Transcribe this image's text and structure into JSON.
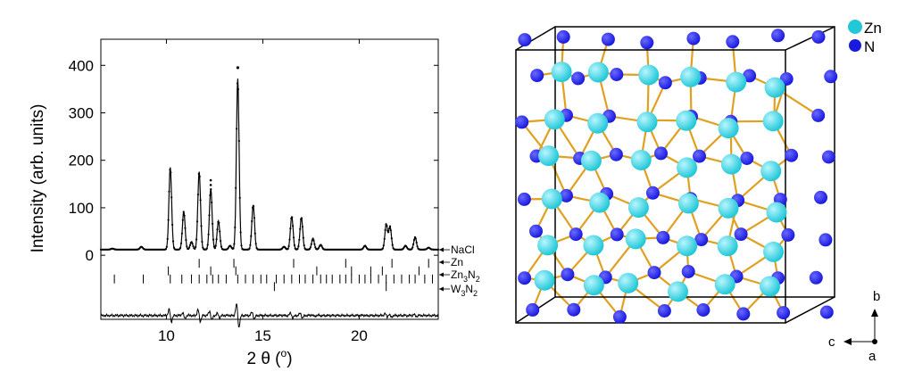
{
  "chart_data": {
    "type": "line",
    "xlabel": "2 θ (",
    "xlabel_sup": "o",
    "xlabel_close": ")",
    "ylabel": "Intensity (arb. units)",
    "xlim": [
      6.6,
      24.1
    ],
    "ylim": [
      -135,
      455
    ],
    "x_ticks": [
      10,
      15,
      20
    ],
    "y_ticks": [
      0,
      100,
      200,
      300,
      400
    ],
    "baseline": 12,
    "peaks": [
      {
        "x": 7.2,
        "y": 14
      },
      {
        "x": 8.7,
        "y": 18
      },
      {
        "x": 10.2,
        "y": 185
      },
      {
        "x": 10.9,
        "y": 92
      },
      {
        "x": 11.3,
        "y": 28
      },
      {
        "x": 11.7,
        "y": 176
      },
      {
        "x": 12.3,
        "y": 140
      },
      {
        "x": 12.7,
        "y": 72
      },
      {
        "x": 13.3,
        "y": 20
      },
      {
        "x": 13.7,
        "y": 372
      },
      {
        "x": 14.5,
        "y": 106
      },
      {
        "x": 16.1,
        "y": 18
      },
      {
        "x": 16.5,
        "y": 82
      },
      {
        "x": 17.0,
        "y": 80
      },
      {
        "x": 17.6,
        "y": 35
      },
      {
        "x": 18.0,
        "y": 22
      },
      {
        "x": 20.3,
        "y": 20
      },
      {
        "x": 21.4,
        "y": 65
      },
      {
        "x": 21.6,
        "y": 60
      },
      {
        "x": 22.4,
        "y": 20
      },
      {
        "x": 22.9,
        "y": 38
      },
      {
        "x": 23.6,
        "y": 16
      }
    ],
    "phases": [
      {
        "name": "NaCl",
        "y": -17,
        "ticks": [
          11.7,
          13.5,
          16.6,
          19.3,
          21.7,
          23.6
        ]
      },
      {
        "name": "Zn",
        "y": -33,
        "ticks": [
          10.1,
          12.3,
          13.6,
          17.8,
          19.6,
          20.6,
          21.2,
          23.1
        ]
      },
      {
        "name": "Zn3N2",
        "name_main": "Zn",
        "name_sub1": "3",
        "name_mid": "N",
        "name_sub2": "2",
        "y": -50,
        "ticks": [
          7.3,
          8.8,
          10.2,
          10.8,
          11.3,
          11.7,
          12.1,
          12.4,
          12.7,
          13.1,
          13.7,
          14.1,
          14.5,
          14.9,
          15.2,
          15.7,
          16.1,
          16.5,
          16.9,
          17.2,
          17.6,
          18.0,
          18.3,
          18.6,
          19.0,
          19.3,
          19.6,
          20.0,
          20.3,
          20.6,
          21.0,
          21.4,
          21.8,
          22.2,
          22.6,
          22.9,
          23.4,
          23.8
        ]
      },
      {
        "name": "W3N2",
        "name_main": "W",
        "name_sub1": "3",
        "name_mid": "N",
        "name_sub2": "2",
        "y": -66,
        "ticks": [
          15.6,
          21.4
        ]
      }
    ],
    "difference_offset": -127
  },
  "structure": {
    "legend": [
      {
        "label": "Zn",
        "color": "#22c8d8"
      },
      {
        "label": "N",
        "color": "#1a1adf"
      }
    ],
    "axes": {
      "b": "b",
      "c": "c",
      "a": "a"
    },
    "bond_color": "#e0a020",
    "cell_color": "#000000"
  }
}
